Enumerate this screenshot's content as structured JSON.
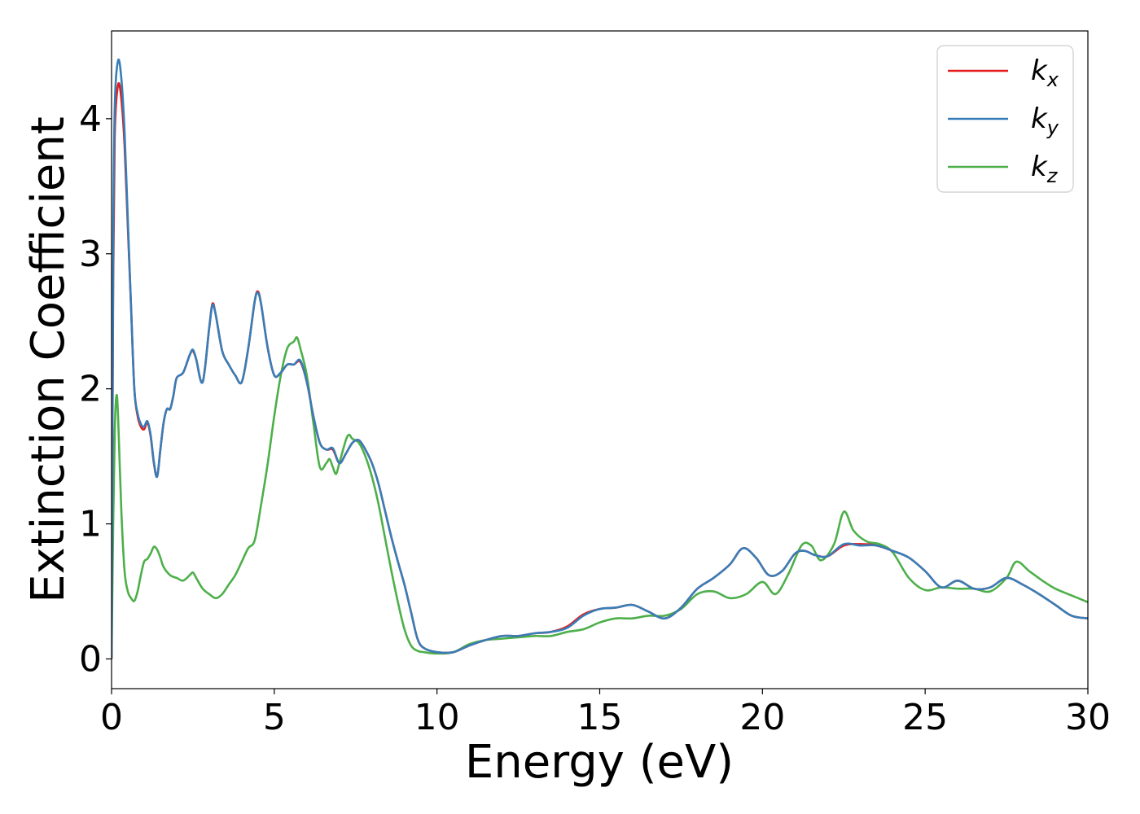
{
  "chart_data": {
    "type": "line",
    "title": "",
    "xlabel": "Energy (eV)",
    "ylabel": "Extinction Coefficient",
    "xlim": [
      0,
      30
    ],
    "ylim": [
      -0.22,
      4.65
    ],
    "xticks": [
      0,
      5,
      10,
      15,
      20,
      25,
      30
    ],
    "yticks": [
      0,
      1,
      2,
      3,
      4
    ],
    "grid": false,
    "legend_position": "top-right",
    "series": [
      {
        "name": "k",
        "subscript": "x",
        "color": "#e41a1c",
        "x": [
          0,
          0.05,
          0.1,
          0.2,
          0.3,
          0.4,
          0.5,
          0.6,
          0.7,
          0.8,
          0.9,
          1.0,
          1.1,
          1.2,
          1.3,
          1.4,
          1.5,
          1.6,
          1.7,
          1.8,
          1.9,
          2.0,
          2.2,
          2.4,
          2.5,
          2.6,
          2.8,
          3.0,
          3.1,
          3.2,
          3.4,
          3.6,
          3.8,
          4.0,
          4.2,
          4.4,
          4.5,
          4.6,
          4.8,
          5.0,
          5.2,
          5.4,
          5.6,
          5.8,
          6.0,
          6.2,
          6.4,
          6.6,
          6.8,
          7.0,
          7.2,
          7.4,
          7.6,
          7.8,
          8.0,
          8.2,
          8.4,
          8.6,
          8.8,
          9.0,
          9.2,
          9.4,
          9.6,
          10.0,
          10.5,
          11.0,
          11.5,
          12.0,
          12.5,
          13.0,
          13.5,
          14.0,
          14.5,
          15.0,
          15.5,
          16.0,
          16.5,
          17.0,
          17.5,
          18.0,
          18.5,
          19.0,
          19.4,
          19.8,
          20.2,
          20.6,
          21.0,
          21.3,
          21.6,
          22.0,
          22.5,
          23.0,
          23.5,
          24.0,
          24.5,
          25.0,
          25.5,
          26.0,
          26.5,
          27.0,
          27.5,
          28.0,
          28.5,
          29.0,
          29.5,
          30.0
        ],
        "y": [
          0.0,
          2.8,
          3.9,
          4.25,
          4.15,
          3.8,
          3.2,
          2.6,
          2.0,
          1.8,
          1.72,
          1.7,
          1.75,
          1.65,
          1.45,
          1.35,
          1.55,
          1.75,
          1.85,
          1.85,
          1.95,
          2.08,
          2.12,
          2.25,
          2.28,
          2.22,
          2.05,
          2.45,
          2.63,
          2.55,
          2.28,
          2.18,
          2.1,
          2.05,
          2.3,
          2.65,
          2.72,
          2.62,
          2.3,
          2.1,
          2.12,
          2.18,
          2.18,
          2.2,
          2.05,
          1.8,
          1.6,
          1.55,
          1.55,
          1.45,
          1.52,
          1.6,
          1.62,
          1.55,
          1.45,
          1.3,
          1.1,
          0.9,
          0.72,
          0.55,
          0.35,
          0.15,
          0.08,
          0.05,
          0.05,
          0.1,
          0.14,
          0.17,
          0.17,
          0.19,
          0.2,
          0.24,
          0.33,
          0.37,
          0.38,
          0.4,
          0.35,
          0.3,
          0.38,
          0.52,
          0.6,
          0.7,
          0.82,
          0.75,
          0.62,
          0.65,
          0.78,
          0.8,
          0.77,
          0.76,
          0.84,
          0.85,
          0.84,
          0.8,
          0.75,
          0.65,
          0.53,
          0.58,
          0.52,
          0.53,
          0.6,
          0.55,
          0.48,
          0.4,
          0.32,
          0.3
        ]
      },
      {
        "name": "k",
        "subscript": "y",
        "color": "#377eb8",
        "x": [
          0,
          0.05,
          0.1,
          0.2,
          0.3,
          0.4,
          0.5,
          0.6,
          0.7,
          0.8,
          0.9,
          1.0,
          1.1,
          1.2,
          1.3,
          1.4,
          1.5,
          1.6,
          1.7,
          1.8,
          1.9,
          2.0,
          2.2,
          2.4,
          2.5,
          2.6,
          2.8,
          3.0,
          3.1,
          3.2,
          3.4,
          3.6,
          3.8,
          4.0,
          4.2,
          4.4,
          4.5,
          4.6,
          4.8,
          5.0,
          5.2,
          5.4,
          5.6,
          5.8,
          6.0,
          6.2,
          6.4,
          6.6,
          6.8,
          7.0,
          7.2,
          7.4,
          7.6,
          7.8,
          8.0,
          8.2,
          8.4,
          8.6,
          8.8,
          9.0,
          9.2,
          9.4,
          9.6,
          10.0,
          10.5,
          11.0,
          11.5,
          12.0,
          12.5,
          13.0,
          13.5,
          14.0,
          14.5,
          15.0,
          15.5,
          16.0,
          16.5,
          17.0,
          17.5,
          18.0,
          18.5,
          19.0,
          19.4,
          19.8,
          20.2,
          20.6,
          21.0,
          21.3,
          21.6,
          22.0,
          22.5,
          23.0,
          23.5,
          24.0,
          24.5,
          25.0,
          25.5,
          26.0,
          26.5,
          27.0,
          27.5,
          28.0,
          28.5,
          29.0,
          29.5,
          30.0
        ],
        "y": [
          0.0,
          3.0,
          4.1,
          4.43,
          4.3,
          3.9,
          3.25,
          2.6,
          2.0,
          1.82,
          1.74,
          1.72,
          1.76,
          1.66,
          1.46,
          1.35,
          1.55,
          1.75,
          1.85,
          1.85,
          1.95,
          2.08,
          2.12,
          2.25,
          2.29,
          2.22,
          2.05,
          2.45,
          2.62,
          2.55,
          2.28,
          2.18,
          2.1,
          2.05,
          2.3,
          2.65,
          2.71,
          2.62,
          2.3,
          2.1,
          2.12,
          2.18,
          2.18,
          2.21,
          2.05,
          1.8,
          1.6,
          1.55,
          1.56,
          1.45,
          1.52,
          1.6,
          1.62,
          1.55,
          1.45,
          1.3,
          1.1,
          0.9,
          0.72,
          0.55,
          0.35,
          0.15,
          0.08,
          0.05,
          0.05,
          0.1,
          0.14,
          0.17,
          0.17,
          0.19,
          0.2,
          0.23,
          0.32,
          0.37,
          0.38,
          0.4,
          0.35,
          0.3,
          0.38,
          0.52,
          0.6,
          0.7,
          0.82,
          0.75,
          0.62,
          0.65,
          0.78,
          0.8,
          0.77,
          0.76,
          0.85,
          0.84,
          0.84,
          0.8,
          0.75,
          0.65,
          0.53,
          0.58,
          0.52,
          0.53,
          0.6,
          0.55,
          0.48,
          0.4,
          0.32,
          0.3
        ]
      },
      {
        "name": "k",
        "subscript": "z",
        "color": "#4daf4a",
        "x": [
          0,
          0.05,
          0.1,
          0.15,
          0.2,
          0.3,
          0.4,
          0.5,
          0.6,
          0.7,
          0.8,
          0.9,
          1.0,
          1.1,
          1.2,
          1.3,
          1.4,
          1.5,
          1.6,
          1.8,
          2.0,
          2.2,
          2.4,
          2.5,
          2.6,
          2.8,
          3.0,
          3.2,
          3.4,
          3.6,
          3.8,
          4.0,
          4.2,
          4.4,
          4.6,
          4.8,
          5.0,
          5.2,
          5.4,
          5.6,
          5.7,
          5.8,
          6.0,
          6.2,
          6.4,
          6.6,
          6.7,
          6.8,
          6.9,
          7.0,
          7.2,
          7.3,
          7.4,
          7.6,
          7.8,
          8.0,
          8.2,
          8.4,
          8.6,
          8.8,
          9.0,
          9.2,
          9.4,
          9.6,
          10.0,
          10.5,
          11.0,
          11.5,
          12.0,
          12.5,
          13.0,
          13.5,
          14.0,
          14.5,
          15.0,
          15.5,
          16.0,
          16.5,
          17.0,
          17.5,
          18.0,
          18.5,
          19.0,
          19.5,
          20.0,
          20.4,
          20.8,
          21.2,
          21.5,
          21.8,
          22.2,
          22.5,
          22.8,
          23.2,
          23.6,
          24.0,
          24.5,
          25.0,
          25.5,
          26.0,
          26.5,
          27.0,
          27.5,
          27.8,
          28.2,
          28.6,
          29.0,
          29.5,
          30.0
        ],
        "y": [
          0.0,
          1.0,
          1.7,
          1.95,
          1.8,
          1.1,
          0.65,
          0.5,
          0.45,
          0.43,
          0.5,
          0.62,
          0.72,
          0.74,
          0.78,
          0.83,
          0.81,
          0.75,
          0.68,
          0.62,
          0.6,
          0.58,
          0.62,
          0.64,
          0.6,
          0.52,
          0.48,
          0.45,
          0.48,
          0.55,
          0.62,
          0.72,
          0.82,
          0.88,
          1.15,
          1.45,
          1.8,
          2.1,
          2.3,
          2.35,
          2.38,
          2.3,
          2.1,
          1.75,
          1.42,
          1.45,
          1.48,
          1.42,
          1.37,
          1.45,
          1.62,
          1.66,
          1.63,
          1.6,
          1.5,
          1.35,
          1.15,
          0.9,
          0.65,
          0.42,
          0.22,
          0.1,
          0.06,
          0.05,
          0.04,
          0.05,
          0.11,
          0.14,
          0.15,
          0.16,
          0.17,
          0.17,
          0.2,
          0.22,
          0.27,
          0.3,
          0.3,
          0.32,
          0.32,
          0.37,
          0.48,
          0.5,
          0.45,
          0.48,
          0.57,
          0.48,
          0.63,
          0.84,
          0.84,
          0.73,
          0.85,
          1.09,
          0.95,
          0.87,
          0.85,
          0.79,
          0.6,
          0.51,
          0.53,
          0.52,
          0.52,
          0.5,
          0.6,
          0.72,
          0.65,
          0.58,
          0.52,
          0.47,
          0.42
        ]
      }
    ]
  }
}
